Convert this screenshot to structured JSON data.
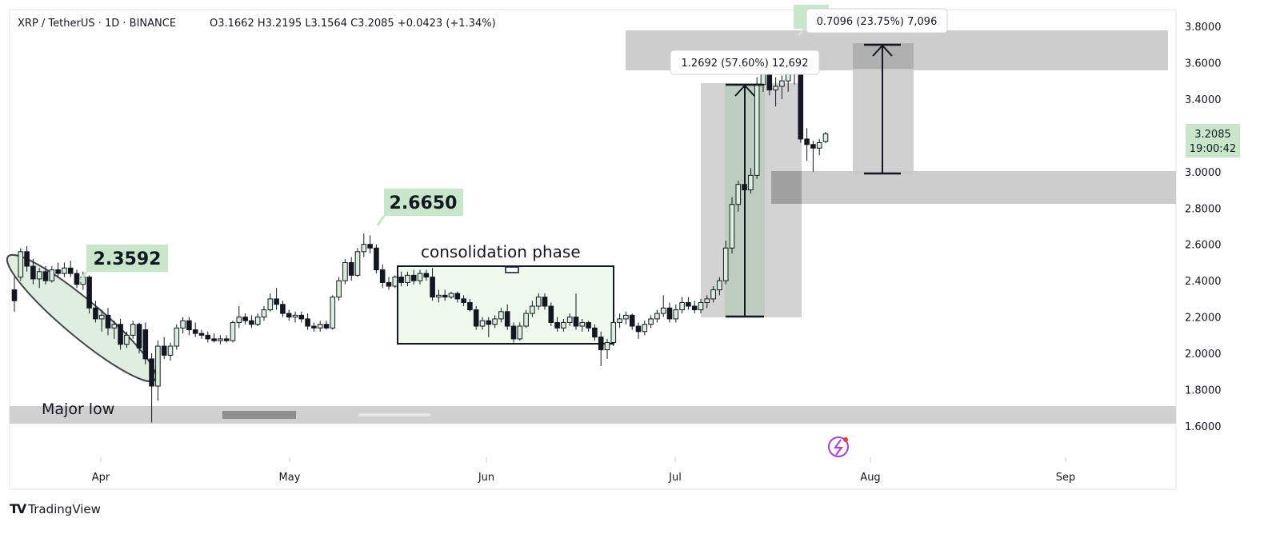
{
  "header": {
    "symbol": "XRP / TetherUS · 1D · BINANCE",
    "ohlc": "O3.1662 H3.2195 L3.1564 C3.2085 +0.0423 (+1.34%)"
  },
  "price_tag": {
    "price": "3.2085",
    "countdown": "19:00:42"
  },
  "annotations": {
    "label_2_3592": "2.3592",
    "label_2_6650": "2.6650",
    "consolidation": "consolidation phase",
    "major_low": "Major low",
    "measure_1": "1.2692 (57.60%) 12,692",
    "measure_2": "0.7096 (23.75%) 7,096"
  },
  "brand": {
    "name": "TradingView",
    "logo": "tradingview-logo-icon"
  },
  "colors": {
    "up_fill": "#d9eedb",
    "down_fill": "#131722",
    "label_bg": "#c8e6c9",
    "zone": "#c8c8c8",
    "consolidation_fill": "#eefaee",
    "watermark": "#a63fd8"
  },
  "chart_data": {
    "type": "candlestick",
    "title": "XRP / TetherUS · 1D · BINANCE",
    "y_range": [
      1.45,
      3.9
    ],
    "y_ticks": [
      "3.8000",
      "3.6000",
      "3.4000",
      "3.2000",
      "3.0000",
      "2.8000",
      "2.6000",
      "2.4000",
      "2.2000",
      "2.0000",
      "1.8000",
      "1.6000"
    ],
    "x_ticks": [
      "Apr",
      "May",
      "Jun",
      "Jul",
      "Aug",
      "Sep"
    ],
    "current_price": 3.2085,
    "candles": [
      {
        "o": 2.35,
        "h": 2.42,
        "l": 2.23,
        "c": 2.29
      },
      {
        "o": 2.42,
        "h": 2.58,
        "l": 2.4,
        "c": 2.56
      },
      {
        "o": 2.56,
        "h": 2.59,
        "l": 2.45,
        "c": 2.48
      },
      {
        "o": 2.48,
        "h": 2.52,
        "l": 2.38,
        "c": 2.41
      },
      {
        "o": 2.41,
        "h": 2.47,
        "l": 2.36,
        "c": 2.45
      },
      {
        "o": 2.45,
        "h": 2.48,
        "l": 2.38,
        "c": 2.4
      },
      {
        "o": 2.4,
        "h": 2.48,
        "l": 2.39,
        "c": 2.46
      },
      {
        "o": 2.46,
        "h": 2.5,
        "l": 2.42,
        "c": 2.44
      },
      {
        "o": 2.44,
        "h": 2.5,
        "l": 2.42,
        "c": 2.47
      },
      {
        "o": 2.47,
        "h": 2.51,
        "l": 2.42,
        "c": 2.44
      },
      {
        "o": 2.44,
        "h": 2.46,
        "l": 2.36,
        "c": 2.38
      },
      {
        "o": 2.38,
        "h": 2.45,
        "l": 2.35,
        "c": 2.42
      },
      {
        "o": 2.42,
        "h": 2.43,
        "l": 2.22,
        "c": 2.25
      },
      {
        "o": 2.25,
        "h": 2.29,
        "l": 2.17,
        "c": 2.19
      },
      {
        "o": 2.19,
        "h": 2.24,
        "l": 2.12,
        "c": 2.21
      },
      {
        "o": 2.21,
        "h": 2.25,
        "l": 2.1,
        "c": 2.14
      },
      {
        "o": 2.14,
        "h": 2.18,
        "l": 2.08,
        "c": 2.16
      },
      {
        "o": 2.16,
        "h": 2.19,
        "l": 2.02,
        "c": 2.05
      },
      {
        "o": 2.05,
        "h": 2.12,
        "l": 2.03,
        "c": 2.1
      },
      {
        "o": 2.1,
        "h": 2.18,
        "l": 2.08,
        "c": 2.16
      },
      {
        "o": 2.16,
        "h": 2.17,
        "l": 2.0,
        "c": 2.03
      },
      {
        "o": 2.13,
        "h": 2.17,
        "l": 1.94,
        "c": 1.97
      },
      {
        "o": 1.97,
        "h": 2.0,
        "l": 1.62,
        "c": 1.82
      },
      {
        "o": 1.82,
        "h": 2.07,
        "l": 1.74,
        "c": 2.04
      },
      {
        "o": 2.04,
        "h": 2.09,
        "l": 1.97,
        "c": 1.99
      },
      {
        "o": 1.99,
        "h": 2.06,
        "l": 1.96,
        "c": 2.04
      },
      {
        "o": 2.04,
        "h": 2.16,
        "l": 2.02,
        "c": 2.14
      },
      {
        "o": 2.14,
        "h": 2.2,
        "l": 2.11,
        "c": 2.18
      },
      {
        "o": 2.18,
        "h": 2.2,
        "l": 2.1,
        "c": 2.13
      },
      {
        "o": 2.13,
        "h": 2.17,
        "l": 2.09,
        "c": 2.11
      },
      {
        "o": 2.11,
        "h": 2.13,
        "l": 2.08,
        "c": 2.1
      },
      {
        "o": 2.1,
        "h": 2.12,
        "l": 2.06,
        "c": 2.08
      },
      {
        "o": 2.08,
        "h": 2.11,
        "l": 2.06,
        "c": 2.07
      },
      {
        "o": 2.07,
        "h": 2.1,
        "l": 2.05,
        "c": 2.08
      },
      {
        "o": 2.08,
        "h": 2.1,
        "l": 2.06,
        "c": 2.07
      },
      {
        "o": 2.07,
        "h": 2.18,
        "l": 2.06,
        "c": 2.17
      },
      {
        "o": 2.17,
        "h": 2.26,
        "l": 2.14,
        "c": 2.2
      },
      {
        "o": 2.2,
        "h": 2.22,
        "l": 2.16,
        "c": 2.18
      },
      {
        "o": 2.18,
        "h": 2.21,
        "l": 2.14,
        "c": 2.16
      },
      {
        "o": 2.16,
        "h": 2.22,
        "l": 2.15,
        "c": 2.2
      },
      {
        "o": 2.2,
        "h": 2.26,
        "l": 2.18,
        "c": 2.24
      },
      {
        "o": 2.24,
        "h": 2.33,
        "l": 2.23,
        "c": 2.3
      },
      {
        "o": 2.3,
        "h": 2.36,
        "l": 2.24,
        "c": 2.27
      },
      {
        "o": 2.27,
        "h": 2.29,
        "l": 2.2,
        "c": 2.22
      },
      {
        "o": 2.22,
        "h": 2.24,
        "l": 2.18,
        "c": 2.2
      },
      {
        "o": 2.2,
        "h": 2.23,
        "l": 2.17,
        "c": 2.21
      },
      {
        "o": 2.21,
        "h": 2.23,
        "l": 2.17,
        "c": 2.19
      },
      {
        "o": 2.19,
        "h": 2.22,
        "l": 2.13,
        "c": 2.15
      },
      {
        "o": 2.15,
        "h": 2.17,
        "l": 2.12,
        "c": 2.14
      },
      {
        "o": 2.14,
        "h": 2.18,
        "l": 2.12,
        "c": 2.16
      },
      {
        "o": 2.16,
        "h": 2.18,
        "l": 2.13,
        "c": 2.14
      },
      {
        "o": 2.14,
        "h": 2.32,
        "l": 2.13,
        "c": 2.31
      },
      {
        "o": 2.31,
        "h": 2.42,
        "l": 2.29,
        "c": 2.4
      },
      {
        "o": 2.4,
        "h": 2.52,
        "l": 2.38,
        "c": 2.5
      },
      {
        "o": 2.5,
        "h": 2.53,
        "l": 2.4,
        "c": 2.43
      },
      {
        "o": 2.43,
        "h": 2.58,
        "l": 2.42,
        "c": 2.56
      },
      {
        "o": 2.56,
        "h": 2.66,
        "l": 2.53,
        "c": 2.6
      },
      {
        "o": 2.6,
        "h": 2.65,
        "l": 2.55,
        "c": 2.58
      },
      {
        "o": 2.58,
        "h": 2.6,
        "l": 2.44,
        "c": 2.46
      },
      {
        "o": 2.46,
        "h": 2.49,
        "l": 2.36,
        "c": 2.39
      },
      {
        "o": 2.39,
        "h": 2.42,
        "l": 2.35,
        "c": 2.37
      },
      {
        "o": 2.37,
        "h": 2.43,
        "l": 2.36,
        "c": 2.42
      },
      {
        "o": 2.42,
        "h": 2.45,
        "l": 2.37,
        "c": 2.39
      },
      {
        "o": 2.39,
        "h": 2.45,
        "l": 2.37,
        "c": 2.43
      },
      {
        "o": 2.43,
        "h": 2.46,
        "l": 2.38,
        "c": 2.4
      },
      {
        "o": 2.4,
        "h": 2.46,
        "l": 2.38,
        "c": 2.44
      },
      {
        "o": 2.44,
        "h": 2.46,
        "l": 2.4,
        "c": 2.42
      },
      {
        "o": 2.42,
        "h": 2.47,
        "l": 2.29,
        "c": 2.31
      },
      {
        "o": 2.31,
        "h": 2.35,
        "l": 2.28,
        "c": 2.32
      },
      {
        "o": 2.32,
        "h": 2.35,
        "l": 2.29,
        "c": 2.31
      },
      {
        "o": 2.31,
        "h": 2.34,
        "l": 2.3,
        "c": 2.33
      },
      {
        "o": 2.33,
        "h": 2.34,
        "l": 2.28,
        "c": 2.3
      },
      {
        "o": 2.3,
        "h": 2.32,
        "l": 2.26,
        "c": 2.28
      },
      {
        "o": 2.28,
        "h": 2.3,
        "l": 2.23,
        "c": 2.24
      },
      {
        "o": 2.24,
        "h": 2.26,
        "l": 2.13,
        "c": 2.15
      },
      {
        "o": 2.15,
        "h": 2.2,
        "l": 2.13,
        "c": 2.18
      },
      {
        "o": 2.18,
        "h": 2.2,
        "l": 2.09,
        "c": 2.16
      },
      {
        "o": 2.16,
        "h": 2.21,
        "l": 2.14,
        "c": 2.19
      },
      {
        "o": 2.19,
        "h": 2.25,
        "l": 2.17,
        "c": 2.23
      },
      {
        "o": 2.23,
        "h": 2.27,
        "l": 2.13,
        "c": 2.15
      },
      {
        "o": 2.15,
        "h": 2.17,
        "l": 2.06,
        "c": 2.08
      },
      {
        "o": 2.08,
        "h": 2.17,
        "l": 2.07,
        "c": 2.15
      },
      {
        "o": 2.15,
        "h": 2.24,
        "l": 2.14,
        "c": 2.22
      },
      {
        "o": 2.22,
        "h": 2.29,
        "l": 2.2,
        "c": 2.26
      },
      {
        "o": 2.26,
        "h": 2.33,
        "l": 2.24,
        "c": 2.31
      },
      {
        "o": 2.31,
        "h": 2.33,
        "l": 2.24,
        "c": 2.26
      },
      {
        "o": 2.26,
        "h": 2.28,
        "l": 2.15,
        "c": 2.17
      },
      {
        "o": 2.17,
        "h": 2.2,
        "l": 2.12,
        "c": 2.14
      },
      {
        "o": 2.14,
        "h": 2.19,
        "l": 2.12,
        "c": 2.17
      },
      {
        "o": 2.17,
        "h": 2.22,
        "l": 2.15,
        "c": 2.2
      },
      {
        "o": 2.2,
        "h": 2.33,
        "l": 2.13,
        "c": 2.15
      },
      {
        "o": 2.15,
        "h": 2.19,
        "l": 2.12,
        "c": 2.17
      },
      {
        "o": 2.17,
        "h": 2.18,
        "l": 2.12,
        "c": 2.14
      },
      {
        "o": 2.14,
        "h": 2.16,
        "l": 2.07,
        "c": 2.09
      },
      {
        "o": 2.09,
        "h": 2.12,
        "l": 1.93,
        "c": 2.02
      },
      {
        "o": 2.02,
        "h": 2.08,
        "l": 1.97,
        "c": 2.06
      },
      {
        "o": 2.06,
        "h": 2.19,
        "l": 2.04,
        "c": 2.17
      },
      {
        "o": 2.17,
        "h": 2.22,
        "l": 2.14,
        "c": 2.19
      },
      {
        "o": 2.19,
        "h": 2.23,
        "l": 2.16,
        "c": 2.21
      },
      {
        "o": 2.21,
        "h": 2.22,
        "l": 2.13,
        "c": 2.15
      },
      {
        "o": 2.15,
        "h": 2.17,
        "l": 2.08,
        "c": 2.12
      },
      {
        "o": 2.12,
        "h": 2.18,
        "l": 2.1,
        "c": 2.16
      },
      {
        "o": 2.16,
        "h": 2.21,
        "l": 2.14,
        "c": 2.19
      },
      {
        "o": 2.19,
        "h": 2.24,
        "l": 2.17,
        "c": 2.22
      },
      {
        "o": 2.22,
        "h": 2.32,
        "l": 2.2,
        "c": 2.25
      },
      {
        "o": 2.25,
        "h": 2.28,
        "l": 2.17,
        "c": 2.19
      },
      {
        "o": 2.19,
        "h": 2.27,
        "l": 2.17,
        "c": 2.24
      },
      {
        "o": 2.24,
        "h": 2.31,
        "l": 2.22,
        "c": 2.28
      },
      {
        "o": 2.28,
        "h": 2.31,
        "l": 2.24,
        "c": 2.26
      },
      {
        "o": 2.26,
        "h": 2.29,
        "l": 2.22,
        "c": 2.24
      },
      {
        "o": 2.24,
        "h": 2.3,
        "l": 2.22,
        "c": 2.28
      },
      {
        "o": 2.28,
        "h": 2.32,
        "l": 2.25,
        "c": 2.3
      },
      {
        "o": 2.3,
        "h": 2.37,
        "l": 2.28,
        "c": 2.35
      },
      {
        "o": 2.35,
        "h": 2.42,
        "l": 2.32,
        "c": 2.4
      },
      {
        "o": 2.4,
        "h": 2.62,
        "l": 2.38,
        "c": 2.58
      },
      {
        "o": 2.58,
        "h": 2.86,
        "l": 2.55,
        "c": 2.82
      },
      {
        "o": 2.82,
        "h": 2.95,
        "l": 2.78,
        "c": 2.93
      },
      {
        "o": 2.93,
        "h": 2.98,
        "l": 2.85,
        "c": 2.9
      },
      {
        "o": 2.9,
        "h": 3.02,
        "l": 2.88,
        "c": 2.98
      },
      {
        "o": 2.98,
        "h": 3.52,
        "l": 2.96,
        "c": 3.48
      },
      {
        "o": 3.48,
        "h": 3.65,
        "l": 3.44,
        "c": 3.56
      },
      {
        "o": 3.56,
        "h": 3.58,
        "l": 3.42,
        "c": 3.45
      },
      {
        "o": 3.45,
        "h": 3.52,
        "l": 3.36,
        "c": 3.47
      },
      {
        "o": 3.47,
        "h": 3.53,
        "l": 3.4,
        "c": 3.5
      },
      {
        "o": 3.5,
        "h": 3.6,
        "l": 3.44,
        "c": 3.55
      },
      {
        "o": 3.55,
        "h": 3.67,
        "l": 3.48,
        "c": 3.54
      },
      {
        "o": 3.54,
        "h": 3.55,
        "l": 3.16,
        "c": 3.18
      },
      {
        "o": 3.18,
        "h": 3.24,
        "l": 3.06,
        "c": 3.15
      },
      {
        "o": 3.15,
        "h": 3.17,
        "l": 3.0,
        "c": 3.13
      },
      {
        "o": 3.13,
        "h": 3.18,
        "l": 3.09,
        "c": 3.16
      },
      {
        "o": 3.1662,
        "h": 3.2195,
        "l": 3.1564,
        "c": 3.2085
      }
    ]
  }
}
